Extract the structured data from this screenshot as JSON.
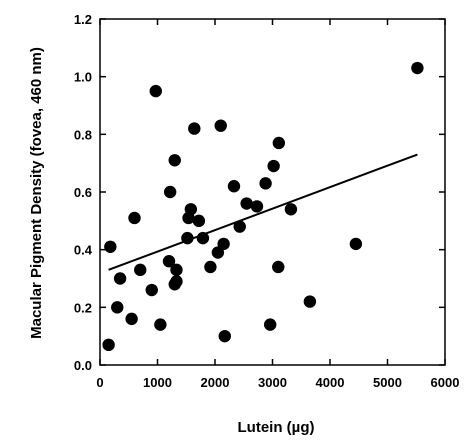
{
  "chart_data": {
    "type": "scatter",
    "title": "",
    "xlabel": "Lutein (µg)",
    "ylabel": "Macular Pigment Density (fovea, 460 nm)",
    "xlim": [
      0,
      6000
    ],
    "ylim": [
      0.0,
      1.2
    ],
    "xticks": [
      0,
      1000,
      2000,
      3000,
      4000,
      5000,
      6000
    ],
    "yticks": [
      0.0,
      0.2,
      0.4,
      0.6,
      0.8,
      1.0,
      1.2
    ],
    "ytick_labels": [
      "0.0",
      "0.2",
      "0.4",
      "0.6",
      "0.8",
      "1.0",
      "1.2"
    ],
    "grid": false,
    "legend": "none",
    "marker_color": "#000000",
    "points": [
      {
        "x": 150,
        "y": 0.07
      },
      {
        "x": 180,
        "y": 0.41
      },
      {
        "x": 300,
        "y": 0.2
      },
      {
        "x": 350,
        "y": 0.3
      },
      {
        "x": 550,
        "y": 0.16
      },
      {
        "x": 600,
        "y": 0.51
      },
      {
        "x": 700,
        "y": 0.33
      },
      {
        "x": 900,
        "y": 0.26
      },
      {
        "x": 970,
        "y": 0.95
      },
      {
        "x": 1050,
        "y": 0.14
      },
      {
        "x": 1200,
        "y": 0.36
      },
      {
        "x": 1220,
        "y": 0.6
      },
      {
        "x": 1300,
        "y": 0.71
      },
      {
        "x": 1300,
        "y": 0.28
      },
      {
        "x": 1330,
        "y": 0.29
      },
      {
        "x": 1330,
        "y": 0.33
      },
      {
        "x": 1520,
        "y": 0.44
      },
      {
        "x": 1540,
        "y": 0.51
      },
      {
        "x": 1580,
        "y": 0.54
      },
      {
        "x": 1640,
        "y": 0.82
      },
      {
        "x": 1720,
        "y": 0.5
      },
      {
        "x": 1790,
        "y": 0.44
      },
      {
        "x": 1920,
        "y": 0.34
      },
      {
        "x": 2050,
        "y": 0.39
      },
      {
        "x": 2100,
        "y": 0.83
      },
      {
        "x": 2150,
        "y": 0.42
      },
      {
        "x": 2170,
        "y": 0.1
      },
      {
        "x": 2330,
        "y": 0.62
      },
      {
        "x": 2430,
        "y": 0.48
      },
      {
        "x": 2550,
        "y": 0.56
      },
      {
        "x": 2730,
        "y": 0.55
      },
      {
        "x": 2880,
        "y": 0.63
      },
      {
        "x": 2960,
        "y": 0.14
      },
      {
        "x": 3020,
        "y": 0.69
      },
      {
        "x": 3100,
        "y": 0.34
      },
      {
        "x": 3110,
        "y": 0.77
      },
      {
        "x": 3320,
        "y": 0.54
      },
      {
        "x": 3650,
        "y": 0.22
      },
      {
        "x": 4450,
        "y": 0.42
      },
      {
        "x": 5520,
        "y": 1.03
      }
    ],
    "trendline": {
      "x": [
        150,
        5520
      ],
      "y": [
        0.33,
        0.73
      ]
    }
  }
}
